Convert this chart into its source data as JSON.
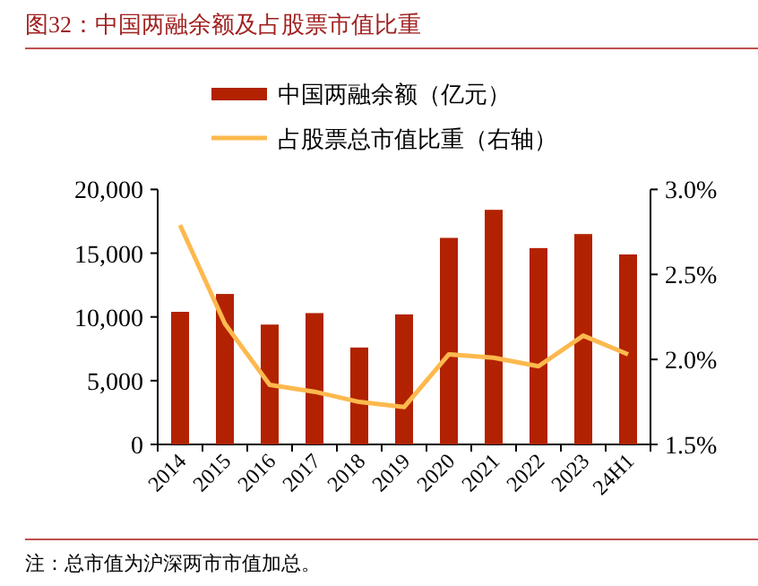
{
  "chart_data": {
    "type": "bar",
    "title": "图32：中国两融余额及占股票市值比重",
    "categories": [
      "2014",
      "2015",
      "2016",
      "2017",
      "2018",
      "2019",
      "2020",
      "2021",
      "2022",
      "2023",
      "24H1"
    ],
    "series": [
      {
        "name": "中国两融余额（亿元）",
        "color": "#b22200",
        "values": [
          10400,
          11800,
          9400,
          10300,
          7600,
          10200,
          16200,
          18400,
          15400,
          16500,
          14900
        ]
      },
      {
        "name": "占股票总市值比重（右轴）",
        "type": "line",
        "axis": "y2",
        "color": "#fdb94e",
        "values": [
          2.79,
          2.21,
          1.85,
          1.81,
          1.75,
          1.72,
          2.03,
          2.01,
          1.96,
          2.14,
          2.03
        ]
      }
    ],
    "ylim": [
      0,
      20000
    ],
    "yticks": [
      {
        "value": 0,
        "label": "0"
      },
      {
        "value": 5000,
        "label": "5,000"
      },
      {
        "value": 10000,
        "label": "10,000"
      },
      {
        "value": 15000,
        "label": "15,000"
      },
      {
        "value": 20000,
        "label": "20,000"
      }
    ],
    "y2lim": [
      1.5,
      3.0
    ],
    "y2ticks": [
      {
        "value": 1.5,
        "label": "1.5%"
      },
      {
        "value": 2.0,
        "label": "2.0%"
      },
      {
        "value": 2.5,
        "label": "2.5%"
      },
      {
        "value": 3.0,
        "label": "3.0%"
      }
    ],
    "legend": "top",
    "annotations": [
      "注：总市值为沪深两市市值加总。"
    ]
  }
}
